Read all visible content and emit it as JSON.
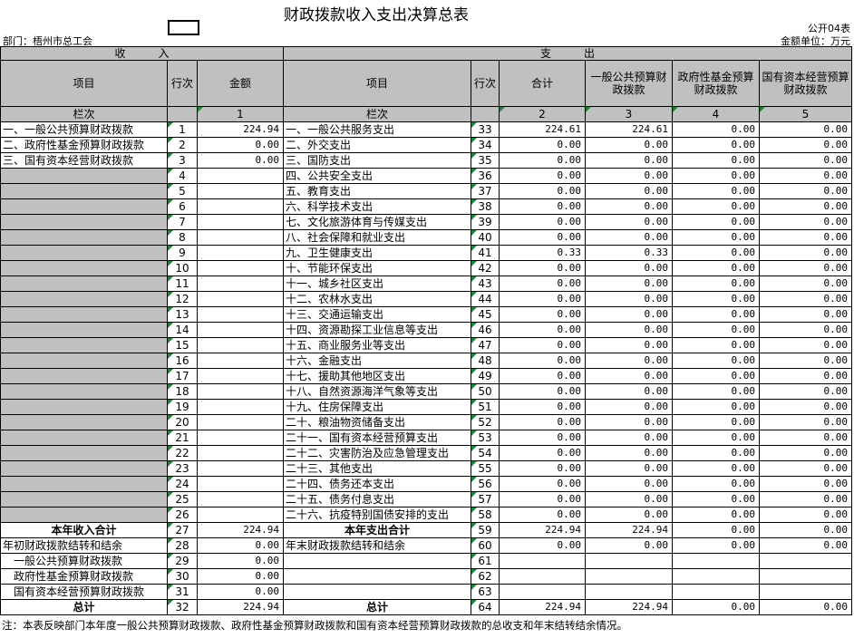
{
  "title": "财政拨款收入支出决算总表",
  "form_no": "公开04表",
  "department": "部门：梧州市总工会",
  "unit": "金额单位：万元",
  "band": [
    "收　　　入",
    "支　　　出"
  ],
  "header_row": [
    "项目",
    "行次",
    "金额",
    "项目",
    "行次",
    "合计",
    "一般公共预算财政拨款",
    "政府性基金预算财政拨款",
    "国有资本经营预算财政拨款"
  ],
  "index_row": [
    "栏次",
    null,
    "1",
    "栏次",
    null,
    "2",
    "3",
    "4",
    "5"
  ],
  "rows": [
    [
      "一、一般公共预算财政拨款",
      "1",
      "224.94",
      "一、一般公共服务支出",
      "33",
      "224.61",
      "224.61",
      "0.00",
      "0.00"
    ],
    [
      "二、政府性基金预算财政拨款",
      "2",
      "0.00",
      "二、外交支出",
      "34",
      "0.00",
      "0.00",
      "0.00",
      "0.00"
    ],
    [
      "三、国有资本经营财政拨款",
      "3",
      "0.00",
      "三、国防支出",
      "35",
      "0.00",
      "0.00",
      "0.00",
      "0.00"
    ],
    [
      null,
      "4",
      null,
      "四、公共安全支出",
      "36",
      "0.00",
      "0.00",
      "0.00",
      "0.00"
    ],
    [
      null,
      "5",
      null,
      "五、教育支出",
      "37",
      "0.00",
      "0.00",
      "0.00",
      "0.00"
    ],
    [
      null,
      "6",
      null,
      "六、科学技术支出",
      "38",
      "0.00",
      "0.00",
      "0.00",
      "0.00"
    ],
    [
      null,
      "7",
      null,
      "七、文化旅游体育与传媒支出",
      "39",
      "0.00",
      "0.00",
      "0.00",
      "0.00"
    ],
    [
      null,
      "8",
      null,
      "八、社会保障和就业支出",
      "40",
      "0.00",
      "0.00",
      "0.00",
      "0.00"
    ],
    [
      null,
      "9",
      null,
      "九、卫生健康支出",
      "41",
      "0.33",
      "0.33",
      "0.00",
      "0.00"
    ],
    [
      null,
      "10",
      null,
      "十、节能环保支出",
      "42",
      "0.00",
      "0.00",
      "0.00",
      "0.00"
    ],
    [
      null,
      "11",
      null,
      "十一、城乡社区支出",
      "43",
      "0.00",
      "0.00",
      "0.00",
      "0.00"
    ],
    [
      null,
      "12",
      null,
      "十二、农林水支出",
      "44",
      "0.00",
      "0.00",
      "0.00",
      "0.00"
    ],
    [
      null,
      "13",
      null,
      "十三、交通运输支出",
      "45",
      "0.00",
      "0.00",
      "0.00",
      "0.00"
    ],
    [
      null,
      "14",
      null,
      "十四、资源勘探工业信息等支出",
      "46",
      "0.00",
      "0.00",
      "0.00",
      "0.00"
    ],
    [
      null,
      "15",
      null,
      "十五、商业服务业等支出",
      "47",
      "0.00",
      "0.00",
      "0.00",
      "0.00"
    ],
    [
      null,
      "16",
      null,
      "十六、金融支出",
      "48",
      "0.00",
      "0.00",
      "0.00",
      "0.00"
    ],
    [
      null,
      "17",
      null,
      "十七、援助其他地区支出",
      "49",
      "0.00",
      "0.00",
      "0.00",
      "0.00"
    ],
    [
      null,
      "18",
      null,
      "十八、自然资源海洋气象等支出",
      "50",
      "0.00",
      "0.00",
      "0.00",
      "0.00"
    ],
    [
      null,
      "19",
      null,
      "十九、住房保障支出",
      "51",
      "0.00",
      "0.00",
      "0.00",
      "0.00"
    ],
    [
      null,
      "20",
      null,
      "二十、粮油物资储备支出",
      "52",
      "0.00",
      "0.00",
      "0.00",
      "0.00"
    ],
    [
      null,
      "21",
      null,
      "二十一、国有资本经营预算支出",
      "53",
      "0.00",
      "0.00",
      "0.00",
      "0.00"
    ],
    [
      null,
      "22",
      null,
      "二十二、灾害防治及应急管理支出",
      "54",
      "0.00",
      "0.00",
      "0.00",
      "0.00"
    ],
    [
      null,
      "23",
      null,
      "二十三、其他支出",
      "55",
      "0.00",
      "0.00",
      "0.00",
      "0.00"
    ],
    [
      null,
      "24",
      null,
      "二十四、债务还本支出",
      "56",
      "0.00",
      "0.00",
      "0.00",
      "0.00"
    ],
    [
      null,
      "25",
      null,
      "二十五、债务付息支出",
      "57",
      "0.00",
      "0.00",
      "0.00",
      "0.00"
    ],
    [
      null,
      "26",
      null,
      "二十六、抗疫特别国债安排的支出",
      "58",
      "0.00",
      "0.00",
      "0.00",
      "0.00"
    ],
    [
      "本年收入合计",
      "27",
      "224.94",
      "本年支出合计",
      "59",
      "224.94",
      "224.94",
      "0.00",
      "0.00"
    ],
    [
      "年初财政拨款结转和结余",
      "28",
      "0.00",
      "年末财政拨款结转和结余",
      "60",
      "0.00",
      "0.00",
      "0.00",
      "0.00"
    ],
    [
      "一般公共预算财政拨款",
      "29",
      "0.00",
      null,
      "61",
      null,
      null,
      null,
      null
    ],
    [
      "政府性基金预算财政拨款",
      "30",
      "0.00",
      null,
      "62",
      null,
      null,
      null,
      null
    ],
    [
      "国有资本经营预算财政拨款",
      "31",
      "0.00",
      null,
      "63",
      null,
      null,
      null,
      null
    ],
    [
      "总计",
      "32",
      "224.94",
      "总计",
      "64",
      "224.94",
      "224.94",
      "0.00",
      "0.00"
    ]
  ],
  "note": "注：本表反映部门本年度一般公共预算财政拨款、政府性基金预算财政拨款和国有资本经营预算财政拨款的总收支和年末结转结余情况。"
}
